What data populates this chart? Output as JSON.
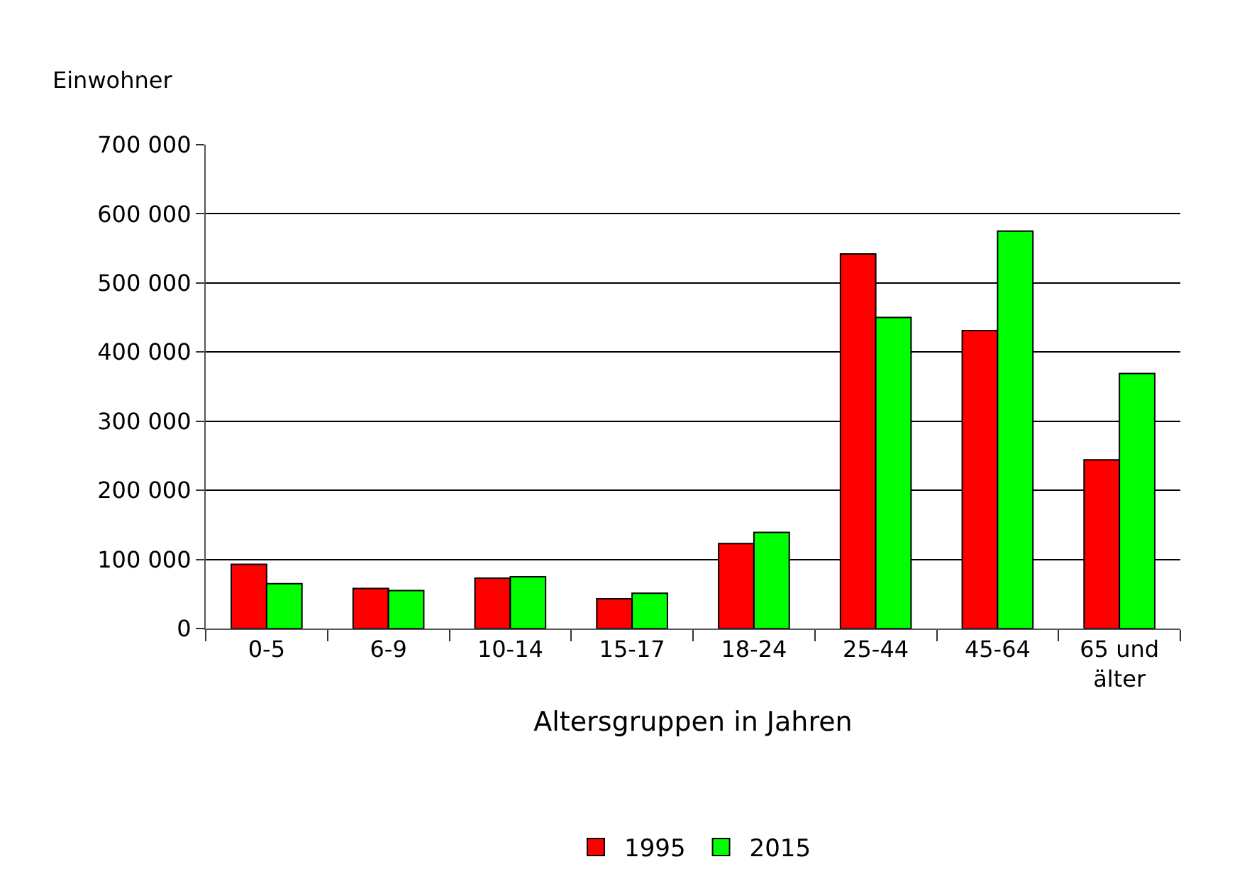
{
  "chart_data": {
    "type": "bar",
    "xlabel": "Altersgruppen in Jahren",
    "ylabel": "Einwohner",
    "categories": [
      "0-5",
      "6-9",
      "10-14",
      "15-17",
      "18-24",
      "25-44",
      "45-64",
      "65 und älter"
    ],
    "series": [
      {
        "name": "1995",
        "color": "#ff0000",
        "values": [
          93000,
          58000,
          73000,
          43000,
          123000,
          542000,
          431000,
          244000
        ]
      },
      {
        "name": "2015",
        "color": "#00ff00",
        "values": [
          65000,
          55000,
          75000,
          51000,
          139000,
          450000,
          575000,
          369000
        ]
      }
    ],
    "ylim": [
      0,
      700000
    ],
    "yticks": [
      0,
      {
        "value": 100000,
        "label": "100 000"
      },
      {
        "value": 200000,
        "label": "200 000"
      },
      {
        "value": 300000,
        "label": "300 000"
      },
      {
        "value": 400000,
        "label": "400 000"
      },
      {
        "value": 500000,
        "label": "500 000"
      },
      {
        "value": 600000,
        "label": "600 000"
      },
      {
        "value": 700000,
        "label": "700 000"
      }
    ],
    "grid": "y",
    "legend": "bottom"
  }
}
